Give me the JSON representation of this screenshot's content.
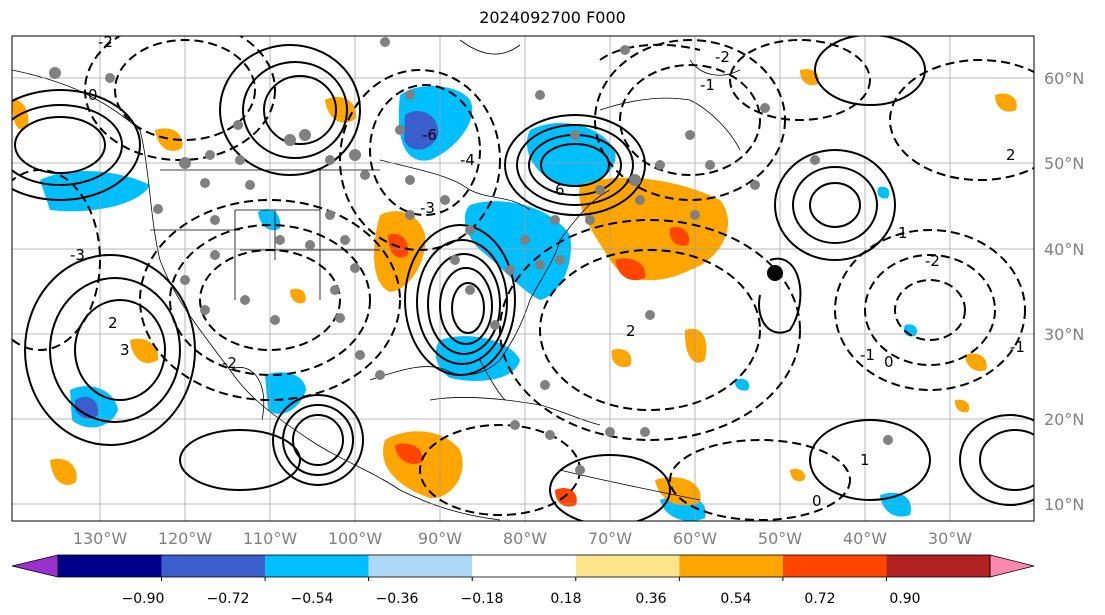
{
  "title": "2024092700 F000",
  "map": {
    "lat_labels": [
      "60°N",
      "50°N",
      "40°N",
      "30°N",
      "20°N",
      "10°N"
    ],
    "lon_labels": [
      "130°W",
      "120°W",
      "110°W",
      "100°W",
      "90°W",
      "80°W",
      "70°W",
      "60°W",
      "50°W",
      "40°W",
      "30°W"
    ]
  },
  "colorbar": {
    "ticks": [
      "−0.90",
      "−0.72",
      "−0.54",
      "−0.36",
      "−0.18",
      "0.18",
      "0.36",
      "0.54",
      "0.72",
      "0.90"
    ],
    "colors": [
      "#9932cc",
      "#00008b",
      "#3a5fcd",
      "#00bfff",
      "#add8f6",
      "#ffffff",
      "#fce58b",
      "#ffa500",
      "#ff4500",
      "#b22222",
      "#ff88b0"
    ]
  },
  "contour_labels": [
    "0",
    "-2",
    "-3",
    "2",
    "-6",
    "-1",
    "1",
    "3",
    "-4",
    "6",
    "-3",
    "-2",
    "1",
    "-2",
    "2",
    "-1",
    "0",
    "0",
    "-1",
    "2",
    "-2"
  ]
}
